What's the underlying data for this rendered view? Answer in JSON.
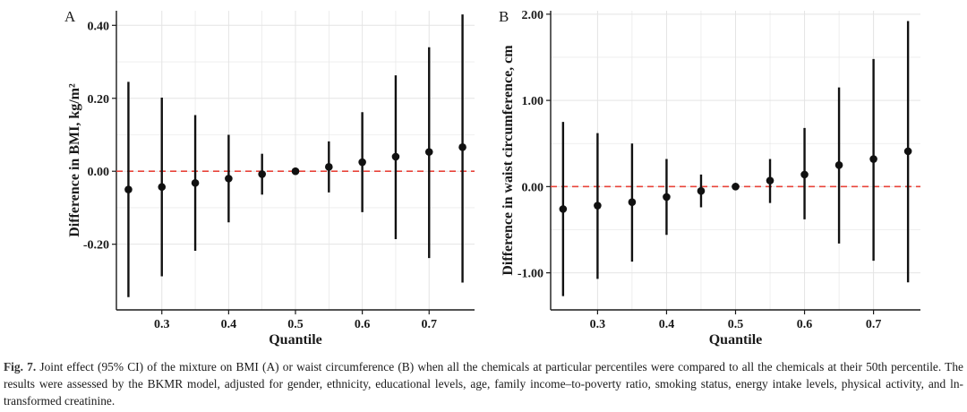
{
  "chart_data": [
    {
      "type": "scatter",
      "panel_label": "A",
      "ylabel": "Difference in BMI, kg/m²",
      "xlabel": "Quantile",
      "xlim": [
        0.232,
        0.768
      ],
      "ylim": [
        -0.38,
        0.44
      ],
      "x_ticks": [
        0.3,
        0.4,
        0.5,
        0.6,
        0.7
      ],
      "x_tick_labels": [
        "0.3",
        "0.4",
        "0.5",
        "0.6",
        "0.7"
      ],
      "y_ticks": [
        -0.2,
        0.0,
        0.2,
        0.4
      ],
      "y_tick_labels": [
        "-0.20",
        "0.00",
        "0.20",
        "0.40"
      ],
      "reference_line": 0,
      "grid": true,
      "points": [
        {
          "x": 0.25,
          "est": -0.05,
          "lower": -0.345,
          "upper": 0.245
        },
        {
          "x": 0.3,
          "est": -0.043,
          "lower": -0.288,
          "upper": 0.202
        },
        {
          "x": 0.35,
          "est": -0.032,
          "lower": -0.218,
          "upper": 0.154
        },
        {
          "x": 0.4,
          "est": -0.02,
          "lower": -0.14,
          "upper": 0.1
        },
        {
          "x": 0.45,
          "est": -0.008,
          "lower": -0.064,
          "upper": 0.048
        },
        {
          "x": 0.5,
          "est": 0.0,
          "lower": 0.0,
          "upper": 0.0
        },
        {
          "x": 0.55,
          "est": 0.012,
          "lower": -0.058,
          "upper": 0.082
        },
        {
          "x": 0.6,
          "est": 0.025,
          "lower": -0.112,
          "upper": 0.162
        },
        {
          "x": 0.65,
          "est": 0.04,
          "lower": -0.186,
          "upper": 0.263
        },
        {
          "x": 0.7,
          "est": 0.053,
          "lower": -0.238,
          "upper": 0.34
        },
        {
          "x": 0.75,
          "est": 0.066,
          "lower": -0.305,
          "upper": 0.43
        }
      ]
    },
    {
      "type": "scatter",
      "panel_label": "B",
      "ylabel": "Difference in waist circumference, cm",
      "xlabel": "Quantile",
      "xlim": [
        0.232,
        0.768
      ],
      "ylim": [
        -1.43,
        2.04
      ],
      "x_ticks": [
        0.3,
        0.4,
        0.5,
        0.6,
        0.7
      ],
      "x_tick_labels": [
        "0.3",
        "0.4",
        "0.5",
        "0.6",
        "0.7"
      ],
      "y_ticks": [
        -1.0,
        0.0,
        1.0,
        2.0
      ],
      "y_tick_labels": [
        "-1.00",
        "0.00",
        "1.00",
        "2.00"
      ],
      "reference_line": 0,
      "grid": true,
      "points": [
        {
          "x": 0.25,
          "est": -0.26,
          "lower": -1.27,
          "upper": 0.75
        },
        {
          "x": 0.3,
          "est": -0.22,
          "lower": -1.07,
          "upper": 0.62
        },
        {
          "x": 0.35,
          "est": -0.18,
          "lower": -0.87,
          "upper": 0.5
        },
        {
          "x": 0.4,
          "est": -0.12,
          "lower": -0.56,
          "upper": 0.32
        },
        {
          "x": 0.45,
          "est": -0.05,
          "lower": -0.24,
          "upper": 0.14
        },
        {
          "x": 0.5,
          "est": 0.0,
          "lower": 0.0,
          "upper": 0.0
        },
        {
          "x": 0.55,
          "est": 0.07,
          "lower": -0.19,
          "upper": 0.32
        },
        {
          "x": 0.6,
          "est": 0.14,
          "lower": -0.38,
          "upper": 0.68
        },
        {
          "x": 0.65,
          "est": 0.25,
          "lower": -0.66,
          "upper": 1.15
        },
        {
          "x": 0.7,
          "est": 0.32,
          "lower": -0.86,
          "upper": 1.48
        },
        {
          "x": 0.75,
          "est": 0.41,
          "lower": -1.11,
          "upper": 1.92
        }
      ]
    }
  ],
  "colors": {
    "point": "#111111",
    "reference_line": "#e8433a",
    "grid": "#e4e4e4",
    "axis": "#1a1a1a"
  },
  "caption": {
    "label": "Fig. 7.",
    "text": "Joint effect (95% CI) of the mixture on BMI (A) or waist circumference (B) when all the chemicals at particular percentiles were compared to all the chemicals at their 50th percentile. The results were assessed by the BKMR model, adjusted for gender, ethnicity, educational levels, age, family income–to-poverty ratio, smoking status, energy intake levels, physical activity, and ln-transformed creatinine."
  }
}
